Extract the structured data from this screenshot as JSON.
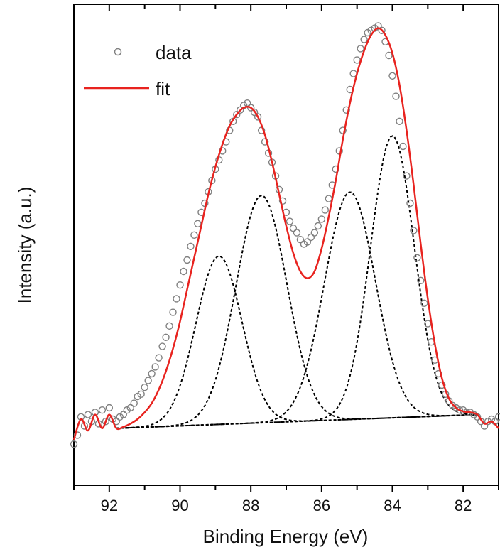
{
  "chart_data": {
    "type": "line",
    "title": "",
    "xlabel": "Binding Energy (eV)",
    "ylabel": "Intensity (a.u.)",
    "x_reversed": true,
    "xlim": [
      93.0,
      81.0
    ],
    "ylim": [
      0.0,
      10.0
    ],
    "y_ticks_labeled": false,
    "x_ticks": [
      92,
      90,
      88,
      86,
      84,
      82
    ],
    "x_tick_labels": [
      "92",
      "90",
      "88",
      "86",
      "84",
      "82"
    ],
    "grid": false,
    "legend": {
      "position": "top-left",
      "entries": [
        {
          "label": "data",
          "marker": "open-circle",
          "color": "#808080"
        },
        {
          "label": "fit",
          "marker": "line",
          "color": "#e8231f"
        }
      ]
    },
    "colors": {
      "data": "#808080",
      "fit": "#e8231f",
      "components": "#000000"
    },
    "components": [
      {
        "center": 88.9,
        "amplitude": 3.7,
        "sigma": 0.65
      },
      {
        "center": 87.7,
        "amplitude": 5.0,
        "sigma": 0.72
      },
      {
        "center": 85.2,
        "amplitude": 5.0,
        "sigma": 0.72
      },
      {
        "center": 84.0,
        "amplitude": 6.2,
        "sigma": 0.62
      }
    ],
    "baseline": {
      "x": [
        91.8,
        81.6
      ],
      "y": [
        1.05,
        1.35
      ]
    },
    "series": [
      {
        "name": "data",
        "style": "open-circle markers",
        "x": [
          93.0,
          92.9,
          92.8,
          92.7,
          92.6,
          92.5,
          92.4,
          92.3,
          92.2,
          92.1,
          92.0,
          91.9,
          91.8,
          91.7,
          91.6,
          91.5,
          91.4,
          91.3,
          91.2,
          91.1,
          91.0,
          90.9,
          90.8,
          90.7,
          90.6,
          90.5,
          90.4,
          90.3,
          90.2,
          90.1,
          90.0,
          89.9,
          89.8,
          89.7,
          89.6,
          89.5,
          89.4,
          89.3,
          89.2,
          89.1,
          89.0,
          88.9,
          88.8,
          88.7,
          88.6,
          88.5,
          88.4,
          88.3,
          88.2,
          88.1,
          88.0,
          87.9,
          87.8,
          87.7,
          87.6,
          87.5,
          87.4,
          87.3,
          87.2,
          87.1,
          87.0,
          86.9,
          86.8,
          86.7,
          86.6,
          86.5,
          86.4,
          86.3,
          86.2,
          86.1,
          86.0,
          85.9,
          85.8,
          85.7,
          85.6,
          85.5,
          85.4,
          85.3,
          85.2,
          85.1,
          85.0,
          84.9,
          84.8,
          84.7,
          84.6,
          84.5,
          84.4,
          84.3,
          84.2,
          84.1,
          84.0,
          83.9,
          83.8,
          83.7,
          83.6,
          83.5,
          83.4,
          83.3,
          83.2,
          83.1,
          83.0,
          82.9,
          82.8,
          82.7,
          82.6,
          82.5,
          82.4,
          82.3,
          82.2,
          82.1,
          82.0,
          81.9,
          81.8,
          81.7,
          81.6,
          81.5,
          81.4,
          81.3,
          81.2,
          81.1,
          81.0
        ],
        "y": [
          0.7,
          0.9,
          1.3,
          1.1,
          1.35,
          1.2,
          1.4,
          1.15,
          1.45,
          1.2,
          1.5,
          1.25,
          1.2,
          1.3,
          1.35,
          1.45,
          1.5,
          1.6,
          1.75,
          1.8,
          1.95,
          2.1,
          2.25,
          2.4,
          2.6,
          2.85,
          3.05,
          3.3,
          3.6,
          3.9,
          4.2,
          4.5,
          4.75,
          5.05,
          5.3,
          5.55,
          5.8,
          6.0,
          6.25,
          6.5,
          6.75,
          6.95,
          7.15,
          7.35,
          7.6,
          7.8,
          7.95,
          8.05,
          8.15,
          8.2,
          8.1,
          8.0,
          7.9,
          7.6,
          7.35,
          7.1,
          6.9,
          6.6,
          6.3,
          6.05,
          5.8,
          5.6,
          5.45,
          5.35,
          5.2,
          5.1,
          5.15,
          5.25,
          5.35,
          5.5,
          5.65,
          5.85,
          6.1,
          6.4,
          6.75,
          7.15,
          7.6,
          8.05,
          8.5,
          8.85,
          9.15,
          9.4,
          9.6,
          9.75,
          9.8,
          9.85,
          9.9,
          9.8,
          9.55,
          9.25,
          8.8,
          8.35,
          7.8,
          7.25,
          6.6,
          6.0,
          5.4,
          4.8,
          4.3,
          3.8,
          3.35,
          2.95,
          2.55,
          2.25,
          2.0,
          1.8,
          1.65,
          1.55,
          1.5,
          1.45,
          1.45,
          1.4,
          1.4,
          1.35,
          1.3,
          1.2,
          1.1,
          1.2,
          1.25,
          1.2,
          1.3
        ]
      },
      {
        "name": "fit",
        "style": "solid line",
        "x": [
          93.0,
          92.8,
          92.6,
          92.4,
          92.2,
          92.0,
          91.8,
          91.6,
          91.4,
          91.2,
          91.0,
          90.8,
          90.6,
          90.4,
          90.2,
          90.0,
          89.8,
          89.6,
          89.4,
          89.2,
          89.0,
          88.8,
          88.6,
          88.4,
          88.2,
          88.0,
          87.8,
          87.6,
          87.4,
          87.2,
          87.0,
          86.8,
          86.6,
          86.4,
          86.2,
          86.0,
          85.8,
          85.6,
          85.4,
          85.2,
          85.0,
          84.8,
          84.6,
          84.4,
          84.2,
          84.0,
          83.8,
          83.6,
          83.4,
          83.2,
          83.0,
          82.8,
          82.6,
          82.4,
          82.2,
          82.0,
          81.8,
          81.6,
          81.4,
          81.2,
          81.0
        ],
        "y": [
          0.8,
          1.25,
          1.0,
          1.35,
          1.05,
          1.35,
          1.05,
          1.08,
          1.15,
          1.25,
          1.4,
          1.6,
          1.9,
          2.3,
          2.8,
          3.4,
          4.1,
          4.8,
          5.5,
          6.2,
          6.8,
          7.3,
          7.7,
          7.95,
          8.1,
          8.1,
          7.9,
          7.5,
          6.9,
          6.2,
          5.5,
          4.9,
          4.5,
          4.35,
          4.5,
          5.0,
          5.7,
          6.5,
          7.4,
          8.2,
          8.85,
          9.35,
          9.7,
          9.85,
          9.7,
          9.3,
          8.6,
          7.6,
          6.4,
          5.1,
          3.9,
          2.9,
          2.15,
          1.7,
          1.5,
          1.42,
          1.4,
          1.35,
          1.15,
          1.2,
          1.05
        ]
      }
    ]
  }
}
